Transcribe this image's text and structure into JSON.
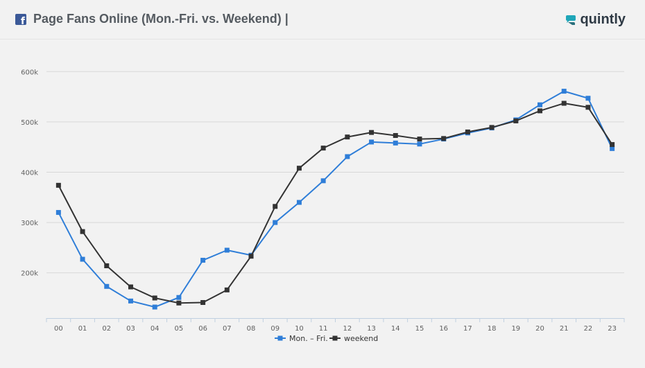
{
  "header": {
    "title": "Page Fans Online (Mon.-Fri. vs. Weekend) |",
    "brand": "quintly",
    "icons": {
      "left": "facebook-icon",
      "brand": "quintly-logo-icon"
    }
  },
  "colors": {
    "weekday": "#2f7ed8",
    "weekend": "#333333",
    "grid": "#d8d8d8",
    "background": "#f2f2f2"
  },
  "chart_data": {
    "type": "line",
    "title": "",
    "xlabel": "",
    "ylabel": "",
    "categories": [
      "00",
      "01",
      "02",
      "03",
      "04",
      "05",
      "06",
      "07",
      "08",
      "09",
      "10",
      "11",
      "12",
      "13",
      "14",
      "15",
      "16",
      "17",
      "18",
      "19",
      "20",
      "21",
      "22",
      "23"
    ],
    "ylim": [
      110000,
      650000
    ],
    "yticks": [
      200000,
      300000,
      400000,
      500000,
      600000
    ],
    "ytick_labels": [
      "200k",
      "300k",
      "400k",
      "500k",
      "600k"
    ],
    "grid": true,
    "legend_position": "bottom-center",
    "series": [
      {
        "name": "Mon. – Fri.",
        "color": "#2f7ed8",
        "values": [
          320000,
          227000,
          173000,
          144000,
          132000,
          151000,
          225000,
          245000,
          235000,
          300000,
          340000,
          383000,
          431000,
          460000,
          458000,
          456000,
          466000,
          478000,
          488000,
          504000,
          534000,
          561000,
          547000,
          447000
        ]
      },
      {
        "name": "weekend",
        "color": "#333333",
        "values": [
          374000,
          282000,
          214000,
          172000,
          150000,
          140000,
          141000,
          166000,
          233000,
          332000,
          408000,
          448000,
          470000,
          479000,
          473000,
          466000,
          467000,
          480000,
          489000,
          502000,
          522000,
          537000,
          529000,
          455000
        ]
      }
    ]
  }
}
